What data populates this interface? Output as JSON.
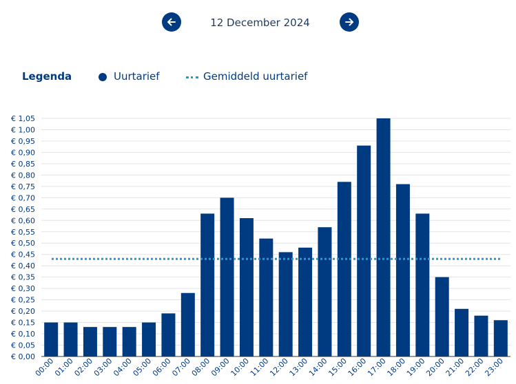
{
  "nav": {
    "date": "12 December 2024",
    "prev_icon": "arrow-left-icon",
    "next_icon": "arrow-right-icon"
  },
  "legend": {
    "title": "Legenda",
    "series_label": "Uurtarief",
    "average_label": "Gemiddeld uurtarief"
  },
  "colors": {
    "bar": "#003a80",
    "average_line": "#1aa0d8",
    "grid": "#e3e3e3"
  },
  "chart_data": {
    "type": "bar",
    "categories": [
      "00:00",
      "01:00",
      "02:00",
      "03:00",
      "04:00",
      "05:00",
      "06:00",
      "07:00",
      "08:00",
      "09:00",
      "10:00",
      "11:00",
      "12:00",
      "13:00",
      "14:00",
      "15:00",
      "16:00",
      "17:00",
      "18:00",
      "19:00",
      "20:00",
      "21:00",
      "22:00",
      "23:00"
    ],
    "series": [
      {
        "name": "Uurtarief",
        "values": [
          0.15,
          0.15,
          0.13,
          0.13,
          0.13,
          0.15,
          0.19,
          0.28,
          0.63,
          0.7,
          0.61,
          0.52,
          0.46,
          0.48,
          0.57,
          0.77,
          0.93,
          1.05,
          0.76,
          0.63,
          0.35,
          0.21,
          0.18,
          0.16
        ]
      }
    ],
    "average": {
      "name": "Gemiddeld uurtarief",
      "value": 0.43
    },
    "ylim": [
      0,
      1.05
    ],
    "yticks": [
      "€ 0,00",
      "€ 0,05",
      "€ 0,10",
      "€ 0,15",
      "€ 0,20",
      "€ 0,25",
      "€ 0,30",
      "€ 0,35",
      "€ 0,40",
      "€ 0,45",
      "€ 0,50",
      "€ 0,55",
      "€ 0,60",
      "€ 0,65",
      "€ 0,70",
      "€ 0,75",
      "€ 0,80",
      "€ 0,85",
      "€ 0,90",
      "€ 0,95",
      "€ 1,00",
      "€ 1,05"
    ],
    "grid": true,
    "legend_position": "top-left"
  }
}
